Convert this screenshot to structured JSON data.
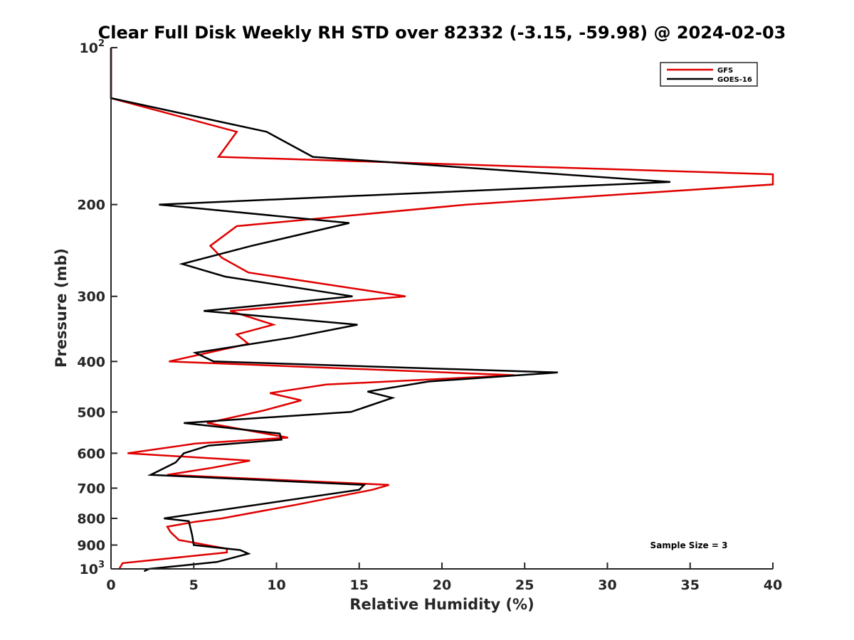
{
  "chart_data": {
    "type": "line",
    "title": "Clear Full Disk Weekly RH STD over 82332 (-3.15, -59.98) @ 2024-02-03",
    "xlabel": "Relative Humidity (%)",
    "ylabel": "Pressure (mb)",
    "xlim": [
      0,
      40
    ],
    "ylim": [
      100,
      1000
    ],
    "y_scale": "log",
    "y_reversed": true,
    "grid": false,
    "legend_position": "top-right",
    "annotation": "Sample Size = 3",
    "x_ticks": [
      "0",
      "5",
      "10",
      "15",
      "20",
      "25",
      "30",
      "35",
      "40"
    ],
    "y_ticks": [
      {
        "value": 200,
        "label": "200"
      },
      {
        "value": 300,
        "label": "300"
      },
      {
        "value": 400,
        "label": "400"
      },
      {
        "value": 500,
        "label": "500"
      },
      {
        "value": 600,
        "label": "600"
      },
      {
        "value": 700,
        "label": "700"
      },
      {
        "value": 800,
        "label": "800"
      },
      {
        "value": 900,
        "label": "900"
      }
    ],
    "y_ticks_power": [
      {
        "value": 100,
        "base": "10",
        "exp": "2"
      },
      {
        "value": 1000,
        "base": "10",
        "exp": "3"
      }
    ],
    "series": [
      {
        "name": "GFS",
        "color": "#e00000",
        "points": [
          [
            0,
            100
          ],
          [
            0,
            125
          ],
          [
            7.6,
            145
          ],
          [
            6.5,
            162
          ],
          [
            40,
            175
          ],
          [
            40,
            183
          ],
          [
            21.5,
            200
          ],
          [
            7.6,
            220
          ],
          [
            6.0,
            240
          ],
          [
            6.7,
            253
          ],
          [
            8.3,
            270
          ],
          [
            17.8,
            300
          ],
          [
            7.2,
            320
          ],
          [
            9.8,
            340
          ],
          [
            7.6,
            355
          ],
          [
            8.3,
            370
          ],
          [
            3.5,
            400
          ],
          [
            24.4,
            425
          ],
          [
            13.0,
            443
          ],
          [
            9.6,
            460
          ],
          [
            11.5,
            475
          ],
          [
            9.2,
            497
          ],
          [
            5.8,
            525
          ],
          [
            10.7,
            560
          ],
          [
            5.1,
            575
          ],
          [
            1.0,
            600
          ],
          [
            8.4,
            620
          ],
          [
            6.1,
            640
          ],
          [
            3.4,
            660
          ],
          [
            16.8,
            690
          ],
          [
            15.8,
            705
          ],
          [
            11.3,
            752
          ],
          [
            6.7,
            800
          ],
          [
            5.1,
            812
          ],
          [
            3.4,
            830
          ],
          [
            3.6,
            850
          ],
          [
            4.1,
            880
          ],
          [
            7.0,
            915
          ],
          [
            7.0,
            930
          ],
          [
            0.7,
            975
          ],
          [
            0.5,
            1000
          ]
        ]
      },
      {
        "name": "GOES-16",
        "color": "#000000",
        "points": [
          [
            0,
            100
          ],
          [
            0,
            125
          ],
          [
            9.4,
            145
          ],
          [
            12.2,
            162
          ],
          [
            33.8,
            181
          ],
          [
            2.9,
            200
          ],
          [
            14.4,
            217
          ],
          [
            8.5,
            240
          ],
          [
            4.3,
            260
          ],
          [
            6.9,
            275
          ],
          [
            14.6,
            300
          ],
          [
            5.6,
            320
          ],
          [
            14.9,
            340
          ],
          [
            10.9,
            360
          ],
          [
            5.1,
            385
          ],
          [
            6.2,
            400
          ],
          [
            27.0,
            420
          ],
          [
            19.2,
            437
          ],
          [
            15.5,
            457
          ],
          [
            17.0,
            470
          ],
          [
            14.5,
            500
          ],
          [
            4.4,
            525
          ],
          [
            10.2,
            550
          ],
          [
            10.3,
            565
          ],
          [
            5.9,
            580
          ],
          [
            4.4,
            600
          ],
          [
            3.9,
            625
          ],
          [
            2.4,
            660
          ],
          [
            15.3,
            690
          ],
          [
            15.0,
            705
          ],
          [
            3.2,
            800
          ],
          [
            4.7,
            810
          ],
          [
            4.9,
            860
          ],
          [
            5.0,
            900
          ],
          [
            7.8,
            920
          ],
          [
            8.3,
            935
          ],
          [
            6.4,
            970
          ],
          [
            2.3,
            1000
          ],
          [
            2.0,
            1010
          ]
        ]
      }
    ]
  }
}
